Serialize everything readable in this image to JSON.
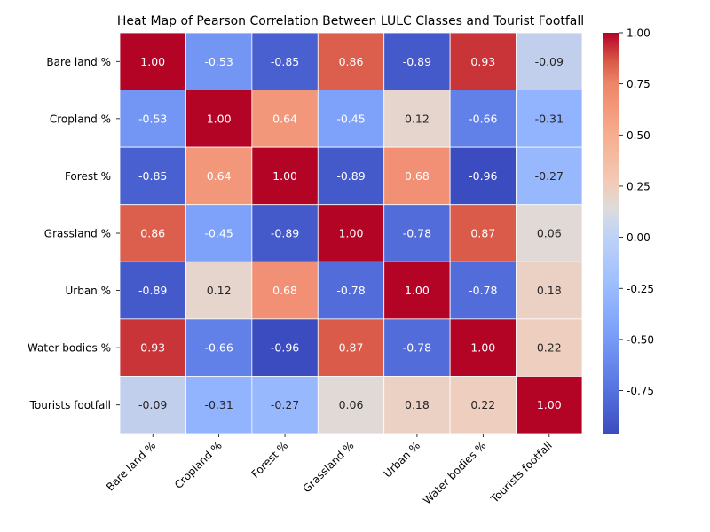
{
  "chart_data": {
    "type": "heatmap",
    "title": "Heat Map of Pearson Correlation Between LULC Classes and Tourist Footfall",
    "row_labels": [
      "Bare land %",
      "Cropland %",
      "Forest %",
      "Grassland %",
      "Urban %",
      "Water bodies %",
      "Tourists footfall"
    ],
    "col_labels": [
      "Bare land %",
      "Cropland %",
      "Forest %",
      "Grassland %",
      "Urban %",
      "Water bodies %",
      "Tourists footfall"
    ],
    "values": [
      [
        1.0,
        -0.53,
        -0.85,
        0.86,
        -0.89,
        0.93,
        -0.09
      ],
      [
        -0.53,
        1.0,
        0.64,
        -0.45,
        0.12,
        -0.66,
        -0.31
      ],
      [
        -0.85,
        0.64,
        1.0,
        -0.89,
        0.68,
        -0.96,
        -0.27
      ],
      [
        0.86,
        -0.45,
        -0.89,
        1.0,
        -0.78,
        0.87,
        0.06
      ],
      [
        -0.89,
        0.12,
        0.68,
        -0.78,
        1.0,
        -0.78,
        0.18
      ],
      [
        0.93,
        -0.66,
        -0.96,
        0.87,
        -0.78,
        1.0,
        0.22
      ],
      [
        -0.09,
        -0.31,
        -0.27,
        0.06,
        0.18,
        0.22,
        1.0
      ]
    ],
    "annotation_format": "2 decimals",
    "colormap": "coolwarm",
    "color_range": [
      -0.96,
      1.0
    ],
    "colorbar_ticks": [
      "-0.75",
      "-0.50",
      "-0.25",
      "0.00",
      "0.25",
      "0.50",
      "0.75",
      "1.00"
    ],
    "colorbar_tick_values": [
      -0.75,
      -0.5,
      -0.25,
      0.0,
      0.25,
      0.5,
      0.75,
      1.0
    ],
    "colorbar_position": "right"
  }
}
